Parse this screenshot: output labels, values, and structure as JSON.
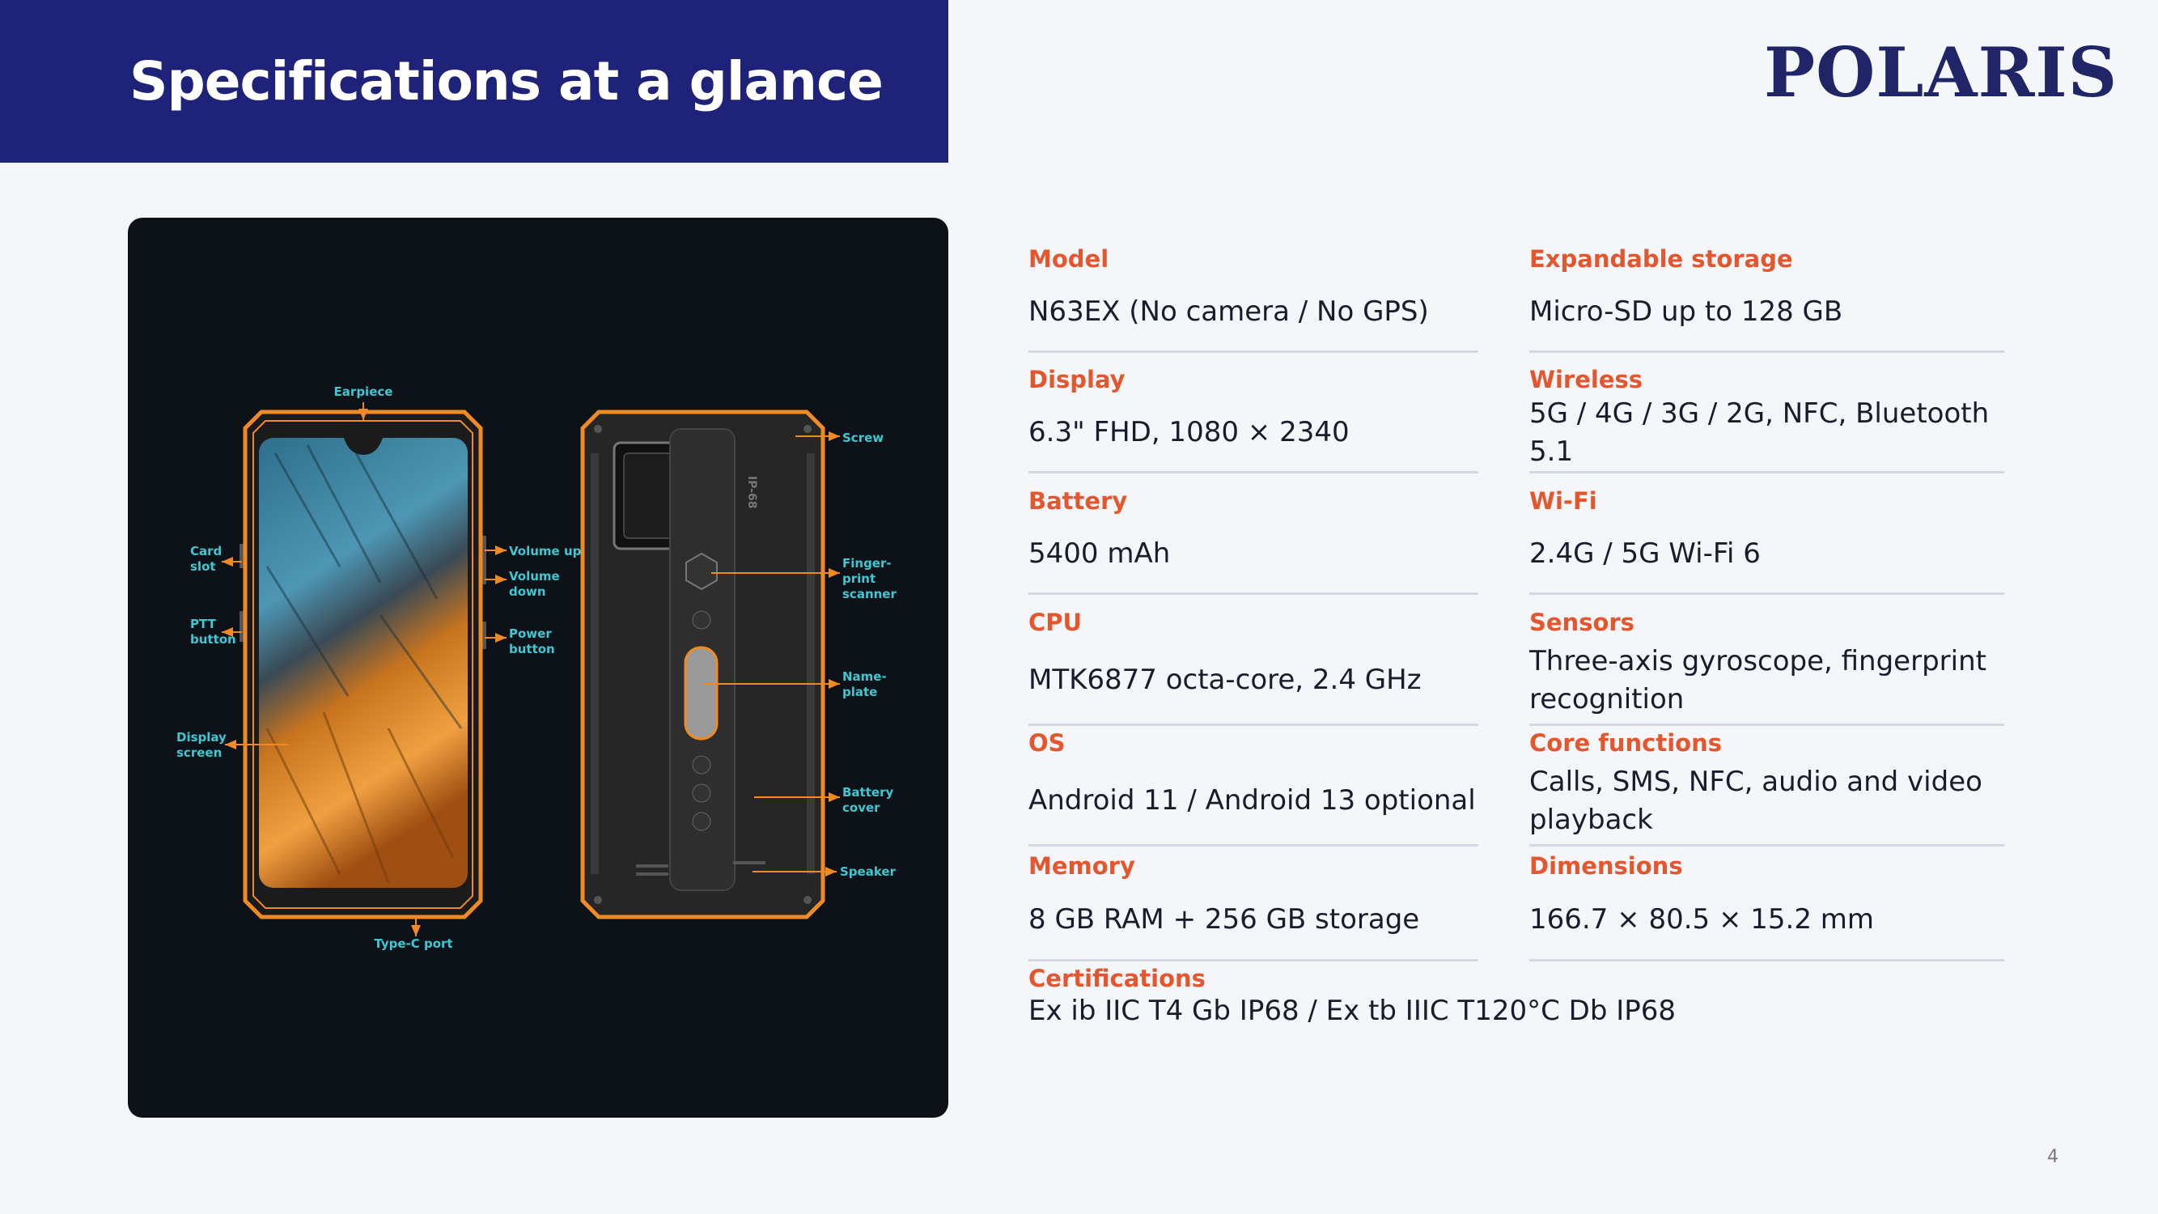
{
  "header": {
    "title": "Specifications at a glance",
    "logo": "POLARIS"
  },
  "figure": {
    "device_mark": "IP-68",
    "callouts": [
      "Earpiece",
      "Card slot",
      "PTT button",
      "Display screen",
      "Volume up",
      "Volume down",
      "Power button",
      "Type-C port",
      "Screw",
      "Finger-print scanner",
      "Name-plate",
      "Battery cover",
      "Speaker"
    ]
  },
  "specs": [
    {
      "label": "Model",
      "value": "N63EX (No camera / No GPS)"
    },
    {
      "label": "Expandable storage",
      "value": "Micro-SD up to 128 GB"
    },
    {
      "label": "Display",
      "value": "6.3\" FHD, 1080 × 2340"
    },
    {
      "label": "Wireless",
      "value": "5G / 4G / 3G / 2G, NFC, Bluetooth 5.1"
    },
    {
      "label": "Battery",
      "value": "5400 mAh"
    },
    {
      "label": "Wi-Fi",
      "value": "2.4G / 5G Wi-Fi 6"
    },
    {
      "label": "CPU",
      "value": "MTK6877 octa-core, 2.4 GHz"
    },
    {
      "label": "Sensors",
      "value": "Three-axis gyroscope, fingerprint recognition"
    },
    {
      "label": "OS",
      "value": "Android 11 / Android 13 optional"
    },
    {
      "label": "Core functions",
      "value": "Calls, SMS, NFC, audio and video playback"
    },
    {
      "label": "Memory",
      "value": "8 GB RAM + 256 GB storage"
    },
    {
      "label": "Dimensions",
      "value": "166.7 × 80.5 × 15.2 mm"
    },
    {
      "label": "Certifications",
      "value": "Ex ib IIC T4 Gb IP68 / Ex tb IIIC T120°C Db IP68"
    }
  ],
  "page_number": "4"
}
